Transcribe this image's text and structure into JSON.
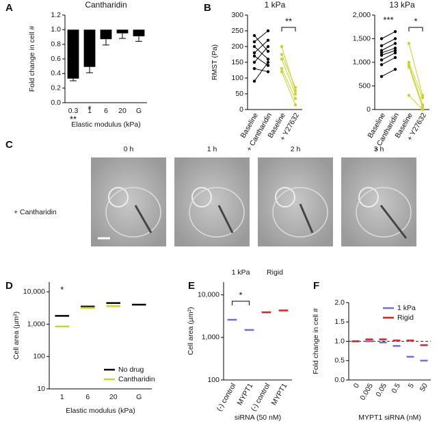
{
  "chart_data": [
    {
      "type": "bar",
      "panel": "A",
      "title": "Cantharidin",
      "ylabel": "Fold change in cell #",
      "xlabel": "Elastic modulus (kPa)",
      "categories": [
        "0.3",
        "1",
        "6",
        "20",
        "G"
      ],
      "values": [
        0.33,
        0.49,
        0.87,
        0.95,
        0.91
      ],
      "errors": [
        0.03,
        0.08,
        0.08,
        0.07,
        0.07
      ],
      "bar_base": 1,
      "color": "#000000",
      "ylim": [
        0,
        1.2
      ],
      "yticks": [
        {
          "value": 0,
          "label": "0.0"
        },
        0.2,
        0.4,
        0.6,
        0.8,
        {
          "value": 1,
          "label": "1.0"
        },
        1.2
      ],
      "annotations": [
        "**",
        "*"
      ]
    },
    {
      "type": "line",
      "panel": "B",
      "title": "1 kPa",
      "ylabel": "RMST (Pa)",
      "categories": [
        "Baseline",
        "+ Cantharidin",
        "Baseline",
        "+ Y27632"
      ],
      "ylim": [
        0,
        300
      ],
      "yticks": [
        0,
        50,
        100,
        150,
        200,
        250,
        300
      ],
      "series": [
        {
          "color": "#000000",
          "values": [
            235,
            185,
            null,
            null
          ]
        },
        {
          "color": "#000000",
          "values": [
            215,
            250,
            null,
            null
          ]
        },
        {
          "color": "#000000",
          "values": [
            200,
            160,
            null,
            null
          ]
        },
        {
          "color": "#000000",
          "values": [
            180,
            220,
            null,
            null
          ]
        },
        {
          "color": "#000000",
          "values": [
            170,
            140,
            null,
            null
          ]
        },
        {
          "color": "#000000",
          "values": [
            150,
            200,
            null,
            null
          ]
        },
        {
          "color": "#000000",
          "values": [
            130,
            120,
            null,
            null
          ]
        },
        {
          "color": "#000000",
          "values": [
            90,
            150,
            null,
            null
          ]
        },
        {
          "color": "#c8d42a",
          "values": [
            null,
            null,
            200,
            60
          ]
        },
        {
          "color": "#c8d42a",
          "values": [
            null,
            null,
            175,
            70
          ]
        },
        {
          "color": "#c8d42a",
          "values": [
            null,
            null,
            160,
            50
          ]
        },
        {
          "color": "#c8d42a",
          "values": [
            null,
            null,
            130,
            35
          ]
        },
        {
          "color": "#c8d42a",
          "values": [
            null,
            null,
            120,
            15
          ]
        }
      ],
      "annotations": [
        "**"
      ]
    },
    {
      "type": "line",
      "title": "13 kPa",
      "categories": [
        "Baseline",
        "+ Cantharidin",
        "Baseline",
        "+ Y27632"
      ],
      "ylim": [
        0,
        2000
      ],
      "yticks": [
        0,
        500,
        {
          "value": 1000,
          "label": "1,000"
        },
        {
          "value": 1500,
          "label": "1,500"
        },
        {
          "value": 2000,
          "label": "2,000"
        }
      ],
      "series": [
        {
          "color": "#000000",
          "values": [
            1500,
            1650,
            null,
            null
          ]
        },
        {
          "color": "#000000",
          "values": [
            1350,
            1500,
            null,
            null
          ]
        },
        {
          "color": "#000000",
          "values": [
            1250,
            1400,
            null,
            null
          ]
        },
        {
          "color": "#000000",
          "values": [
            1200,
            1300,
            null,
            null
          ]
        },
        {
          "color": "#000000",
          "values": [
            1150,
            1250,
            null,
            null
          ]
        },
        {
          "color": "#000000",
          "values": [
            1050,
            1200,
            null,
            null
          ]
        },
        {
          "color": "#000000",
          "values": [
            950,
            1100,
            null,
            null
          ]
        },
        {
          "color": "#000000",
          "values": [
            700,
            850,
            null,
            null
          ]
        },
        {
          "color": "#c8d42a",
          "values": [
            null,
            null,
            1400,
            300
          ]
        },
        {
          "color": "#c8d42a",
          "values": [
            null,
            null,
            1000,
            250
          ]
        },
        {
          "color": "#c8d42a",
          "values": [
            null,
            null,
            950,
            100
          ]
        },
        {
          "color": "#c8d42a",
          "values": [
            null,
            null,
            900,
            50
          ]
        },
        {
          "color": "#c8d42a",
          "values": [
            null,
            null,
            300,
            0
          ]
        }
      ],
      "annotations": [
        "***",
        "*"
      ]
    },
    {
      "type": "scatter",
      "panel": "D",
      "ylabel": "Cell area (µm²)",
      "xlabel": "Elastic modulus (kPa)",
      "log_y": true,
      "categories": [
        "1",
        "6",
        "20",
        "G"
      ],
      "ylim": [
        10,
        20000
      ],
      "yticks": [
        10,
        100,
        {
          "value": 1000,
          "label": "1,000"
        },
        {
          "value": 10000,
          "label": "10,000"
        }
      ],
      "series": [
        {
          "name": "No drug",
          "color": "#000000",
          "values": [
            1800,
            3500,
            4500,
            4000
          ]
        },
        {
          "name": "Cantharidin",
          "color": "#c8d42a",
          "values": [
            850,
            3200,
            3600,
            null
          ]
        }
      ],
      "legend": "lower right",
      "annotations": [
        "*"
      ]
    },
    {
      "type": "scatter",
      "panel": "E",
      "ylabel": "Cell area (µm²)",
      "xlabel": "siRNA (50 nM)",
      "log_y": true,
      "groups": [
        "1 kPa",
        "Rigid"
      ],
      "categories": [
        "(-) control",
        "MYPT1",
        "(-) control",
        "MYPT1"
      ],
      "ylim": [
        100,
        20000
      ],
      "yticks": [
        100,
        {
          "value": 1000,
          "label": "1,000"
        },
        {
          "value": 10000,
          "label": "10,000"
        }
      ],
      "series": [
        {
          "color": "#6b6fe0",
          "values": [
            2600,
            1500,
            null,
            null
          ]
        },
        {
          "color": "#e02020",
          "values": [
            null,
            null,
            3900,
            4300
          ]
        }
      ],
      "annotations": [
        "*"
      ]
    },
    {
      "type": "scatter",
      "panel": "F",
      "ylabel": "Fold change in cell #",
      "xlabel": "MYPT1 siRNA (nM)",
      "categories": [
        "0",
        "0.005",
        "0.05",
        "0.5",
        "5",
        "50"
      ],
      "ylim": [
        0,
        2
      ],
      "yticks": [
        {
          "value": 0,
          "label": "0.0"
        },
        0.5,
        {
          "value": 1,
          "label": "1.0"
        },
        1.5,
        {
          "value": 2,
          "label": "2.0"
        }
      ],
      "series": [
        {
          "name": "1 kPa",
          "color": "#6b6fe0",
          "values": [
            1.0,
            1.0,
            0.97,
            0.88,
            0.6,
            0.5
          ]
        },
        {
          "name": "Rigid",
          "color": "#e02020",
          "values": [
            1.0,
            1.05,
            1.05,
            1.02,
            1.02,
            0.9
          ]
        }
      ],
      "hline": 1,
      "legend": "upper right"
    }
  ],
  "panel_c": {
    "panel": "C",
    "label": "+ Cantharidin",
    "times": [
      "0 h",
      "1 h",
      "2 h",
      "3 h"
    ]
  }
}
